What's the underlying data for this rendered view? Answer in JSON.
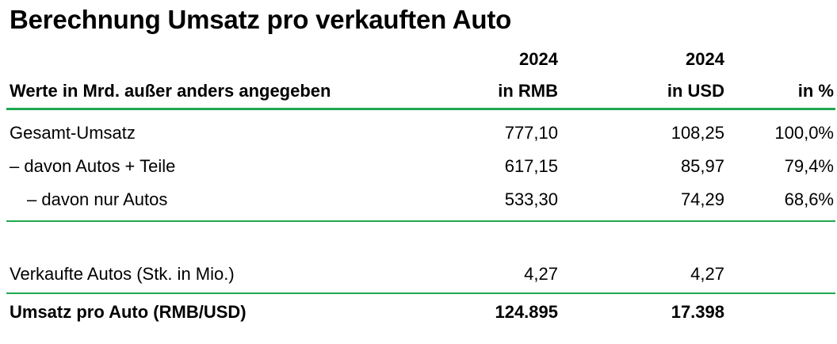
{
  "title": "Berechnung Umsatz pro verkauften Auto",
  "header": {
    "label": "Werte in Mrd. außer anders angegeben",
    "col1_year": "2024",
    "col1_unit": "in RMB",
    "col2_year": "2024",
    "col2_unit": "in USD",
    "col3_unit": "in %"
  },
  "rows": [
    {
      "label": "Gesamt-Umsatz",
      "rmb": "777,10",
      "usd": "108,25",
      "pct": "100,0%"
    },
    {
      "label": "– davon Autos + Teile",
      "rmb": "617,15",
      "usd": "85,97",
      "pct": "79,4%"
    },
    {
      "label": "– davon nur Autos",
      "rmb": "533,30",
      "usd": "74,29",
      "pct": "68,6%"
    }
  ],
  "sold": {
    "label": "Verkaufte Autos (Stk. in Mio.)",
    "rmb": "4,27",
    "usd": "4,27"
  },
  "per_car": {
    "label": "Umsatz pro Auto (RMB/USD)",
    "rmb": "124.895",
    "usd": "17.398"
  },
  "colors": {
    "rule": "#1fa84f"
  }
}
